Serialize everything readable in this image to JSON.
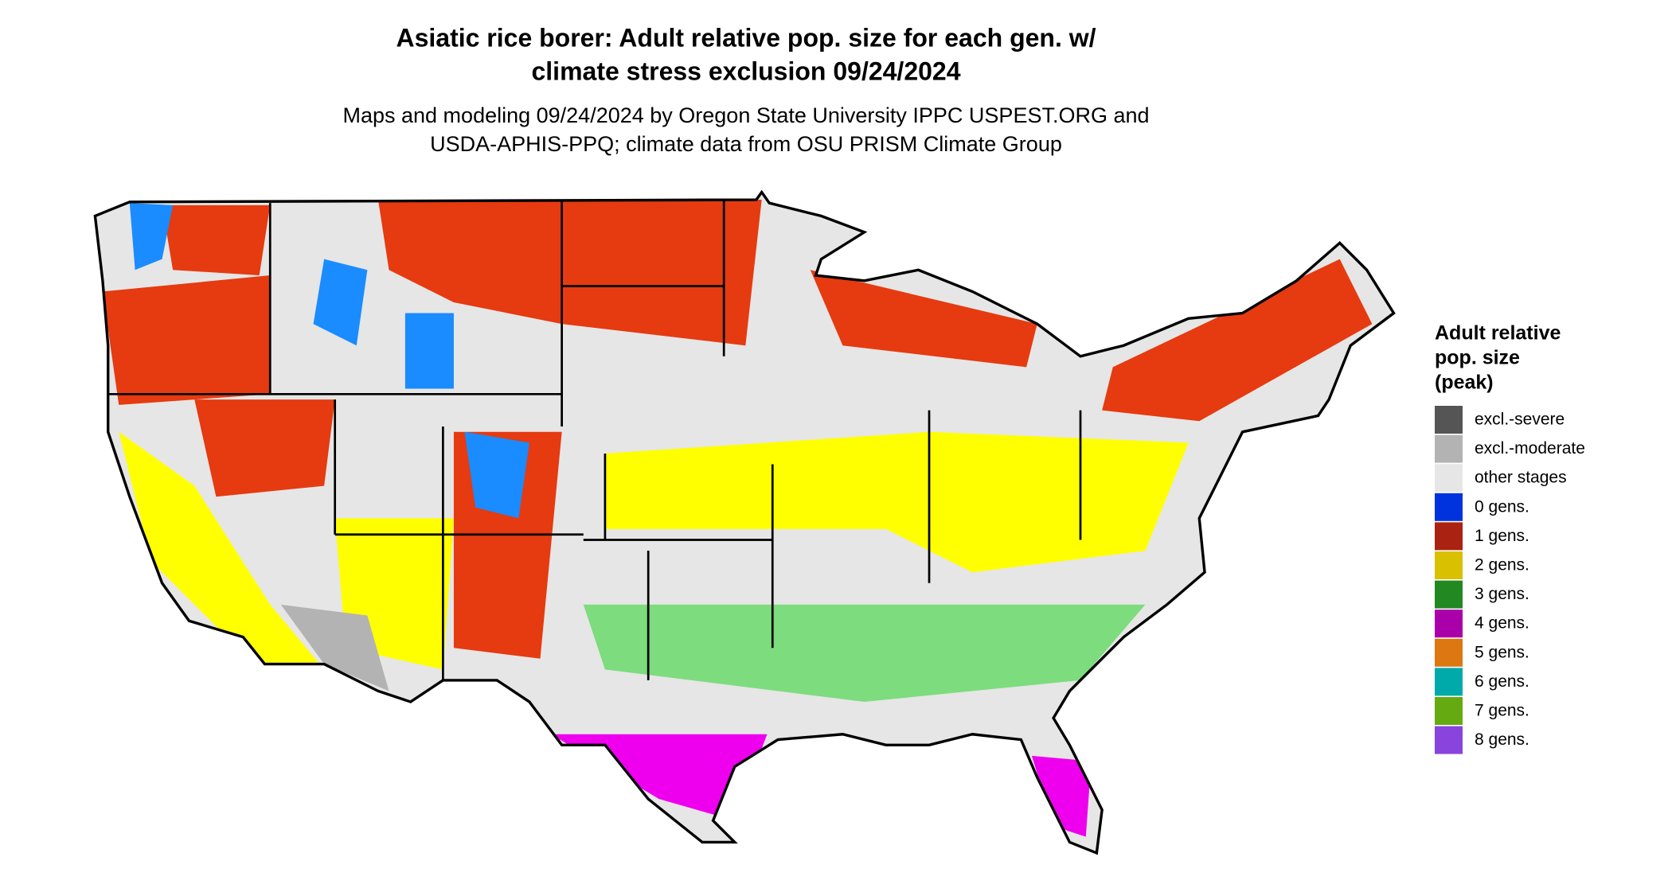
{
  "title_lines": [
    "Asiatic rice borer: Adult relative pop. size for each gen. w/",
    "climate stress exclusion 09/24/2024"
  ],
  "subtitle_lines": [
    "Maps and modeling 09/24/2024 by Oregon State University IPPC USPEST.ORG and",
    "USDA-APHIS-PPQ; climate data from OSU PRISM Climate Group"
  ],
  "legend": {
    "title_lines": [
      "Adult relative",
      "pop. size",
      "(peak)"
    ],
    "items": [
      {
        "label": "excl.-severe",
        "color": "#555555"
      },
      {
        "label": "excl.-moderate",
        "color": "#b3b3b3"
      },
      {
        "label": "other stages",
        "color": "#e6e6e6"
      },
      {
        "label": "0 gens.",
        "color": "#0033dd"
      },
      {
        "label": "1 gens.",
        "color": "#aa2211"
      },
      {
        "label": "2 gens.",
        "color": "#d9c000"
      },
      {
        "label": "3 gens.",
        "color": "#228822"
      },
      {
        "label": "4 gens.",
        "color": "#aa00aa"
      },
      {
        "label": "5 gens.",
        "color": "#dd7711"
      },
      {
        "label": "6 gens.",
        "color": "#00aaaa"
      },
      {
        "label": "7 gens.",
        "color": "#66aa11"
      },
      {
        "label": "8 gens.",
        "color": "#8844dd"
      }
    ]
  }
}
